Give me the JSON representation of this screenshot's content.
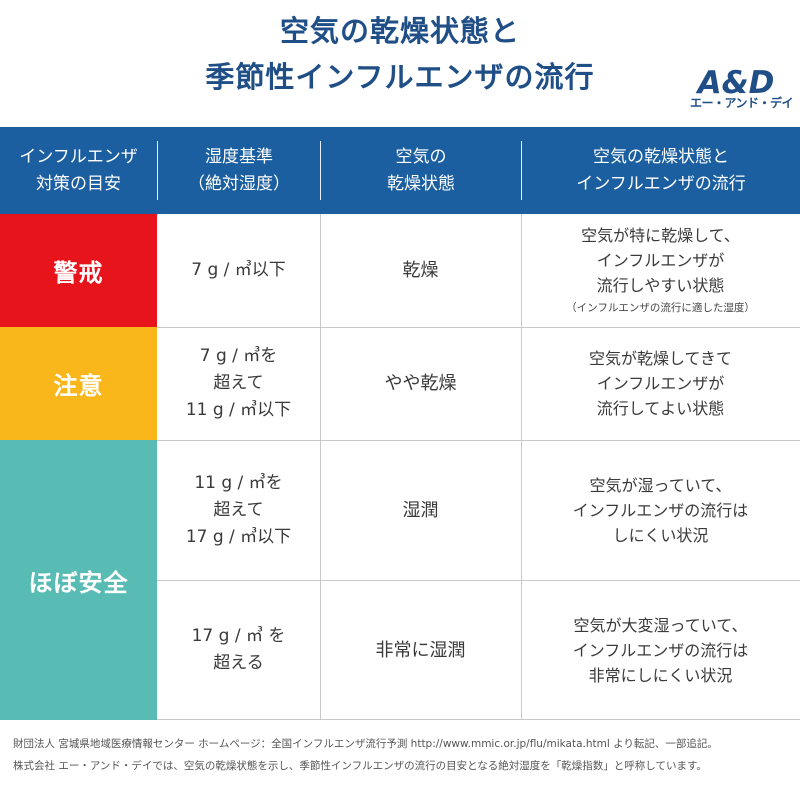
{
  "title": {
    "line1": "空気の乾燥状態と",
    "line2": "季節性インフルエンザの流行"
  },
  "logo": {
    "mark": "A&D",
    "sub": "エー・アンド・デイ",
    "color": "#1f4f86"
  },
  "table": {
    "headers": [
      "インフルエンザ\n対策の目安",
      "湿度基準\n（絶対湿度）",
      "空気の\n乾燥状態",
      "空気の乾燥状態と\nインフルエンザの流行"
    ],
    "levels": [
      {
        "label": "警戒",
        "color": "#e8141b"
      },
      {
        "label": "注意",
        "color": "#f9b71c"
      },
      {
        "label": "ほぼ安全",
        "color": "#58bcb5"
      }
    ],
    "rows": [
      {
        "humidity": "7 g / ㎥以下",
        "state": "乾燥",
        "flu": "空気が特に乾燥して、\nインフルエンザが\n流行しやすい状態",
        "note": "（インフルエンザの流行に適した湿度）"
      },
      {
        "humidity": "7 g / ㎥を\n超えて\n11 g / ㎥以下",
        "state": "やや乾燥",
        "flu": "空気が乾燥してきて\nインフルエンザが\n流行してよい状態"
      },
      {
        "humidity": "11 g / ㎥を\n超えて\n17 g / ㎥以下",
        "state": "湿潤",
        "flu": "空気が湿っていて、\nインフルエンザの流行は\nしにくい状況"
      },
      {
        "humidity": "17 g / ㎥ を\n超える",
        "state": "非常に湿潤",
        "flu": "空気が大変湿っていて、\nインフルエンザの流行は\n非常にしにくい状況"
      }
    ]
  },
  "footer": {
    "line1": "財団法人 宮城県地域医療情報センター ホームページ：全国インフルエンザ流行予測 http://www.mmic.or.jp/flu/mikata.html より転記、一部追記。",
    "line2": "株式会社 エー・アンド・デイでは、空気の乾燥状態を示し、季節性インフルエンザの流行の目安となる絶対湿度を「乾燥指数」と呼称しています。"
  },
  "colors": {
    "header_bg": "#1c5fa0",
    "title": "#1f4f86"
  }
}
